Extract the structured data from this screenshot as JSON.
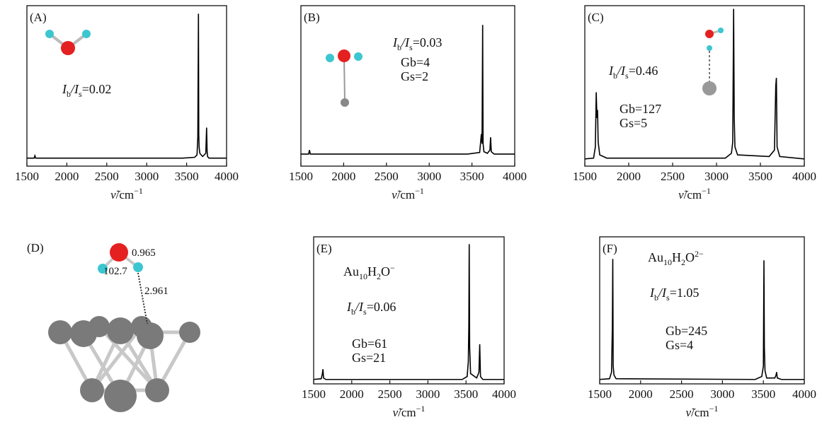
{
  "chart_data": [
    {
      "type": "line",
      "label": "(A)",
      "color": "#000000",
      "x": [
        1500,
        1590,
        1600,
        1610,
        3450,
        3600,
        3630,
        3640,
        3648,
        3652,
        3656,
        3665,
        3700,
        3740,
        3750,
        3756,
        3762,
        3780,
        4000
      ],
      "values": [
        5,
        5,
        6.5,
        5,
        5,
        5.5,
        7,
        18,
        95,
        20,
        12,
        8,
        6,
        8,
        24,
        10,
        6,
        5,
        5
      ],
      "xlim": [
        1500,
        4000
      ],
      "xticks": [
        1500,
        2000,
        2500,
        3000,
        3500,
        4000
      ],
      "ylim": [
        0,
        100
      ],
      "xlabel": [
        {
          "text": "ν̃",
          "style": "italic"
        },
        {
          "text": "/cm"
        },
        {
          "text": "−1",
          "style": "sup"
        }
      ],
      "annotations": [
        [
          {
            "text": "I",
            "style": "italic"
          },
          {
            "text": "b",
            "style": "sub"
          },
          {
            "text": "/",
            "style": "italic"
          },
          {
            "text": "I",
            "style": "italic"
          },
          {
            "text": "s",
            "style": "sub"
          },
          {
            "text": "=0.02"
          }
        ]
      ]
    },
    {
      "type": "line",
      "label": "(B)",
      "color": "#000000",
      "x": [
        1500,
        1590,
        1600,
        1610,
        3450,
        3590,
        3610,
        3618,
        3625,
        3630,
        3640,
        3680,
        3710,
        3718,
        3726,
        3760,
        4000
      ],
      "values": [
        7.5,
        7.5,
        10,
        7.5,
        7.5,
        8.5,
        20,
        14,
        88,
        14,
        9,
        8,
        10,
        18,
        9,
        7.5,
        7.5
      ],
      "xlim": [
        1500,
        4000
      ],
      "xticks": [
        1500,
        2000,
        2500,
        3000,
        3500,
        4000
      ],
      "ylim": [
        0,
        100
      ],
      "xlabel": [
        {
          "text": "ν̃",
          "style": "italic"
        },
        {
          "text": "/cm"
        },
        {
          "text": "−1",
          "style": "sup"
        }
      ],
      "annotations": [
        [
          {
            "text": "I",
            "style": "italic"
          },
          {
            "text": "b",
            "style": "sub"
          },
          {
            "text": "/",
            "style": "italic"
          },
          {
            "text": "I",
            "style": "italic"
          },
          {
            "text": "s",
            "style": "sub"
          },
          {
            "text": "=0.03"
          }
        ],
        [
          {
            "text": "Gb=4"
          }
        ],
        [
          {
            "text": "Gs=2"
          }
        ]
      ]
    },
    {
      "type": "line",
      "label": "(C)",
      "color": "#000000",
      "x": [
        1500,
        1600,
        1620,
        1630,
        1638,
        1645,
        1652,
        1670,
        1750,
        3100,
        3170,
        3185,
        3195,
        3202,
        3210,
        3240,
        3600,
        3660,
        3675,
        3682,
        3690,
        3720,
        4000
      ],
      "values": [
        4.5,
        5,
        12,
        46,
        30,
        35,
        15,
        7,
        5,
        5,
        8,
        15,
        98,
        30,
        12,
        7,
        6,
        10,
        50,
        55,
        12,
        6,
        4.5
      ],
      "xlim": [
        1500,
        4000
      ],
      "xticks": [
        1500,
        2000,
        2500,
        3000,
        3500,
        4000
      ],
      "ylim": [
        0,
        100
      ],
      "xlabel": [
        {
          "text": "ν̃",
          "style": "italic"
        },
        {
          "text": "/cm"
        },
        {
          "text": "−1",
          "style": "sup"
        }
      ],
      "annotations": [
        [
          {
            "text": "I",
            "style": "italic"
          },
          {
            "text": "b",
            "style": "sub"
          },
          {
            "text": "/",
            "style": "italic"
          },
          {
            "text": "I",
            "style": "italic"
          },
          {
            "text": "s",
            "style": "sub"
          },
          {
            "text": "=0.46"
          }
        ],
        [
          {
            "text": "Gb=127"
          }
        ],
        [
          {
            "text": "Gs=5"
          }
        ]
      ]
    },
    {
      "type": "line",
      "label": "(E)",
      "color": "#000000",
      "x": [
        1500,
        1600,
        1615,
        1622,
        1630,
        1660,
        3450,
        3515,
        3530,
        3537,
        3542,
        3548,
        3560,
        3640,
        3670,
        3680,
        3690,
        3720,
        4000
      ],
      "values": [
        3,
        3.5,
        7,
        10,
        4,
        3,
        3,
        5,
        15,
        40,
        95,
        25,
        7,
        4,
        8,
        27,
        5,
        3,
        3
      ],
      "xlim": [
        1500,
        4000
      ],
      "xticks": [
        1500,
        2000,
        2500,
        3000,
        3500,
        4000
      ],
      "ylim": [
        0,
        100
      ],
      "xlabel": [
        {
          "text": "ν̃",
          "style": "italic"
        },
        {
          "text": "/cm"
        },
        {
          "text": "−1",
          "style": "sup"
        }
      ],
      "annotations": [
        [
          {
            "text": "Au"
          },
          {
            "text": "10",
            "style": "sub"
          },
          {
            "text": "H"
          },
          {
            "text": "2",
            "style": "sub"
          },
          {
            "text": "O"
          },
          {
            "text": "−",
            "style": "sup"
          }
        ],
        [
          {
            "text": "I",
            "style": "italic"
          },
          {
            "text": "b",
            "style": "sub"
          },
          {
            "text": "/",
            "style": "italic"
          },
          {
            "text": "I",
            "style": "italic"
          },
          {
            "text": "s",
            "style": "sub"
          },
          {
            "text": "=0.06"
          }
        ],
        [
          {
            "text": "Gb=61"
          }
        ],
        [
          {
            "text": "Gs=21"
          }
        ]
      ]
    },
    {
      "type": "line",
      "label": "(F)",
      "color": "#000000",
      "x": [
        1500,
        1620,
        1645,
        1655,
        1660,
        1665,
        1675,
        1700,
        3400,
        3480,
        3500,
        3507,
        3512,
        3520,
        3540,
        3640,
        3655,
        3662,
        3670,
        3720,
        4000
      ],
      "values": [
        3,
        3.5,
        8,
        40,
        85,
        12,
        6,
        3.5,
        3,
        5,
        12,
        84,
        25,
        9,
        4,
        4,
        6,
        8,
        4,
        3,
        3
      ],
      "xlim": [
        1500,
        4000
      ],
      "xticks": [
        1500,
        2000,
        2500,
        3000,
        3500,
        4000
      ],
      "ylim": [
        0,
        100
      ],
      "xlabel": [
        {
          "text": "ν̃",
          "style": "italic"
        },
        {
          "text": "/cm"
        },
        {
          "text": "−1",
          "style": "sup"
        }
      ],
      "annotations": [
        [
          {
            "text": "Au"
          },
          {
            "text": "10",
            "style": "sub"
          },
          {
            "text": "H"
          },
          {
            "text": "2",
            "style": "sub"
          },
          {
            "text": "O"
          },
          {
            "text": "2−",
            "style": "sup"
          }
        ],
        [
          {
            "text": "I",
            "style": "italic"
          },
          {
            "text": "b",
            "style": "sub"
          },
          {
            "text": "/",
            "style": "italic"
          },
          {
            "text": "I",
            "style": "italic"
          },
          {
            "text": "s",
            "style": "sub"
          },
          {
            "text": "=1.05"
          }
        ],
        [
          {
            "text": "Gb=245"
          }
        ],
        [
          {
            "text": "Gs=4"
          }
        ]
      ]
    }
  ],
  "diagram": {
    "label": "(D)",
    "bond_length": "0.965",
    "angle": "102.7",
    "distance": "2.961"
  }
}
